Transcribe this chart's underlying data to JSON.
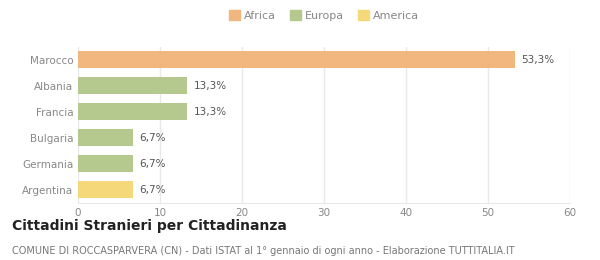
{
  "categories": [
    "Marocco",
    "Albania",
    "Francia",
    "Bulgaria",
    "Germania",
    "Argentina"
  ],
  "values": [
    53.3,
    13.3,
    13.3,
    6.7,
    6.7,
    6.7
  ],
  "labels": [
    "53,3%",
    "13,3%",
    "13,3%",
    "6,7%",
    "6,7%",
    "6,7%"
  ],
  "colors": [
    "#f2b77e",
    "#b5c98e",
    "#b5c98e",
    "#b5c98e",
    "#b5c98e",
    "#f5d87a"
  ],
  "legend_labels": [
    "Africa",
    "Europa",
    "America"
  ],
  "legend_colors": [
    "#f2b77e",
    "#b5c98e",
    "#f5d87a"
  ],
  "xlim": [
    0,
    60
  ],
  "xticks": [
    0,
    10,
    20,
    30,
    40,
    50,
    60
  ],
  "title": "Cittadini Stranieri per Cittadinanza",
  "subtitle": "COMUNE DI ROCCASPARVERA (CN) - Dati ISTAT al 1° gennaio di ogni anno - Elaborazione TUTTITALIA.IT",
  "background_color": "#ffffff",
  "plot_bg_color": "#ffffff",
  "grid_color": "#e8e8e8",
  "title_fontsize": 10,
  "subtitle_fontsize": 7,
  "label_fontsize": 7.5,
  "tick_fontsize": 7.5,
  "legend_fontsize": 8,
  "bar_height": 0.65,
  "label_color": "#555555",
  "tick_color": "#888888",
  "title_color": "#222222",
  "subtitle_color": "#777777"
}
